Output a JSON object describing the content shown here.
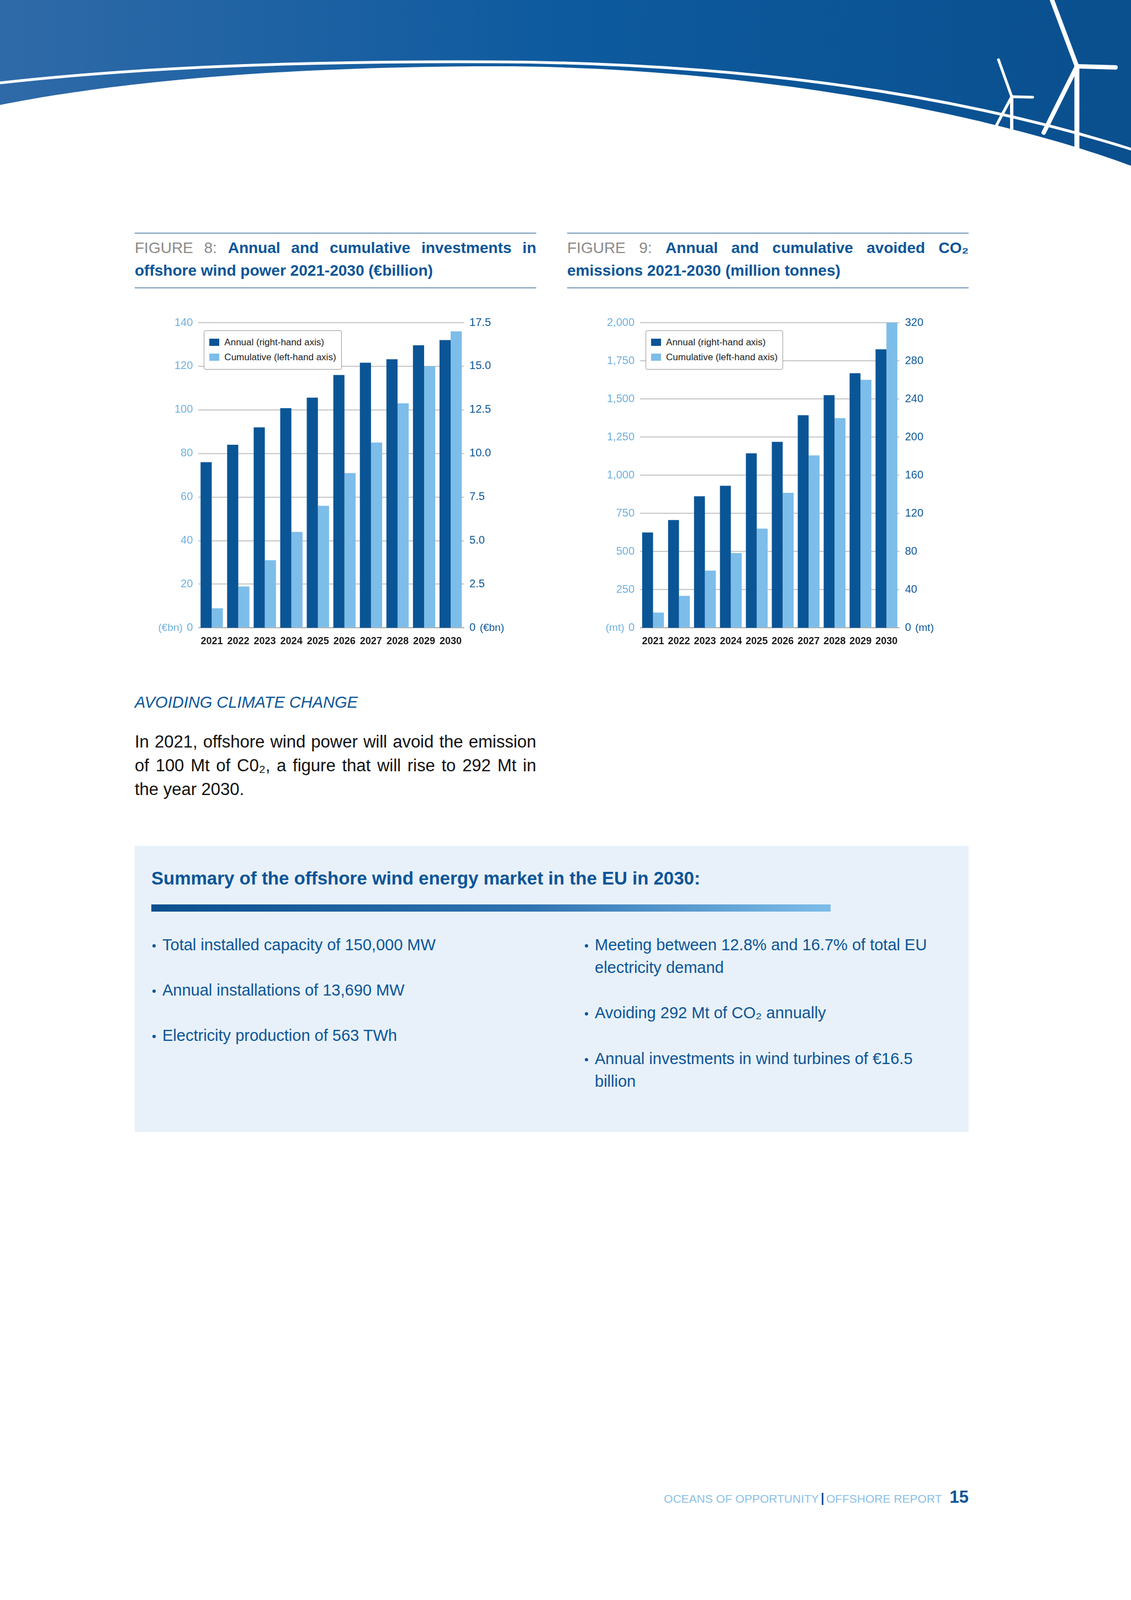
{
  "chart_data": [
    {
      "type": "bar",
      "label": "FIGURE 8:",
      "title": "Annual and cumulative investments in offshore wind power 2021-2030 (€billion)",
      "categories": [
        "2021",
        "2022",
        "2023",
        "2024",
        "2025",
        "2026",
        "2027",
        "2028",
        "2029",
        "2030"
      ],
      "series": [
        {
          "name": "Annual (right-hand axis)",
          "color": "#0a5596",
          "axis": "y2",
          "values": [
            9.5,
            10.5,
            11.5,
            12.6,
            13.2,
            14.5,
            15.2,
            15.4,
            16.2,
            16.5
          ]
        },
        {
          "name": "Cumulative (left-hand axis)",
          "color": "#7dbde9",
          "axis": "y",
          "values": [
            9,
            19,
            31,
            44,
            56,
            71,
            85,
            103,
            120,
            136
          ]
        }
      ],
      "ylabel": "(€bn)",
      "y2label": "(€bn)",
      "ylim": [
        0,
        140
      ],
      "yticks": [
        0,
        20,
        40,
        60,
        80,
        100,
        120,
        140
      ],
      "y2lim": [
        0,
        17.5
      ],
      "y2ticks": [
        0,
        2.5,
        {
          "value": 5,
          "label": "5.0"
        },
        7.5,
        {
          "value": 10,
          "label": "10.0"
        },
        12.5,
        {
          "value": 15,
          "label": "15.0"
        },
        17.5
      ],
      "grid": true,
      "legend": "upper left"
    },
    {
      "type": "bar",
      "label": "FIGURE 9:",
      "title": "Annual and cumulative avoided CO₂ emissions 2021-2030 (million tonnes)",
      "categories": [
        "2021",
        "2022",
        "2023",
        "2024",
        "2025",
        "2026",
        "2027",
        "2028",
        "2029",
        "2030"
      ],
      "series": [
        {
          "name": "Annual (right-hand axis)",
          "color": "#0a5596",
          "axis": "y2",
          "values": [
            100,
            113,
            138,
            149,
            183,
            195,
            223,
            244,
            267,
            292
          ]
        },
        {
          "name": "Cumulative (left-hand axis)",
          "color": "#7dbde9",
          "axis": "y",
          "values": [
            100,
            210,
            375,
            490,
            650,
            885,
            1130,
            1375,
            1625,
            2000
          ]
        }
      ],
      "ylabel": "(mt)",
      "y2label": "(mt)",
      "ylim": [
        0,
        2000
      ],
      "yticks": [
        0,
        250,
        500,
        750,
        {
          "value": 1000,
          "label": "1,000"
        },
        {
          "value": 1250,
          "label": "1,250"
        },
        {
          "value": 1500,
          "label": "1,500"
        },
        {
          "value": 1750,
          "label": "1,750"
        },
        {
          "value": 2000,
          "label": "2,000"
        }
      ],
      "y2lim": [
        0,
        320
      ],
      "y2ticks": [
        0,
        40,
        80,
        120,
        160,
        200,
        240,
        280,
        320
      ],
      "grid": true,
      "legend": "upper left"
    }
  ],
  "section": {
    "heading": "AVOIDING CLIMATE CHANGE",
    "text": "In 2021, offshore wind power will avoid the emission of 100 Mt of C0₂, a figure that will rise to 292 Mt in the year 2030."
  },
  "summary": {
    "title": "Summary of the offshore wind energy market in the EU in 2030:",
    "left": [
      "Total installed capacity of 150,000 MW",
      "Annual installations of 13,690 MW",
      "Electricity production of 563 TWh"
    ],
    "right": [
      "Meeting between 12.8% and 16.7% of total EU electricity demand",
      "Avoiding 292 Mt of CO₂ annually",
      "Annual investments in wind turbines of €16.5 billion"
    ]
  },
  "footer": {
    "left": "OCEANS OF OPPORTUNITY",
    "right": "OFFSHORE REPORT",
    "page": "15"
  }
}
